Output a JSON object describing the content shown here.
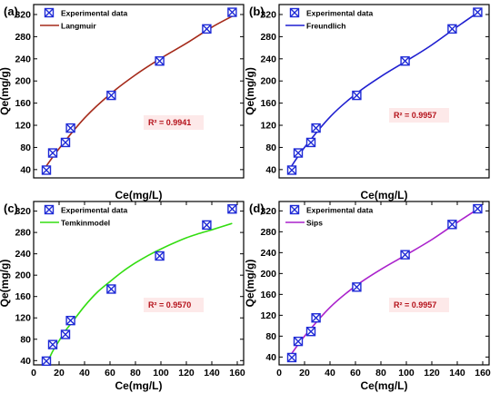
{
  "colors": {
    "marker": "#1f2bd6",
    "r2_text": "#b5121b",
    "r2_box": "#fde9e9",
    "langmuir": "#a52a1a",
    "freundlich": "#1f1fd0",
    "temkin": "#33dd11",
    "sips": "#aa22cc"
  },
  "chart_data": [
    {
      "panel_label": "(a)",
      "type": "scatter",
      "xlabel": "Ce(mg/L)",
      "ylabel": "Qe(mg/g)",
      "xlim": [
        0,
        165
      ],
      "ylim": [
        25,
        338
      ],
      "xticks": [],
      "xtick_labels": [],
      "yticks": [
        40,
        80,
        120,
        160,
        200,
        240,
        280,
        320
      ],
      "ytick_labels": [
        "40",
        "80",
        "120",
        "160",
        "200",
        "240",
        "280",
        "320"
      ],
      "legend": [
        "Experimental data",
        "Langmuir"
      ],
      "legend_position": "top-left",
      "r2_text": "R² = 0.9941",
      "series": [
        {
          "name": "Experimental data",
          "x": [
            10,
            15,
            25,
            29,
            61,
            99,
            136,
            156
          ],
          "y": [
            39,
            70,
            89,
            115,
            174,
            236,
            294,
            324
          ]
        },
        {
          "name": "Langmuir",
          "x": [
            8,
            20,
            40,
            60,
            80,
            100,
            120,
            140,
            157
          ],
          "y": [
            40,
            78,
            133,
            176,
            211,
            241,
            268,
            297,
            318
          ]
        }
      ]
    },
    {
      "panel_label": "(b)",
      "type": "scatter",
      "xlabel": "Ce(mg/L)",
      "ylabel": "Qe(mg/g)",
      "xlim": [
        0,
        165
      ],
      "ylim": [
        25,
        338
      ],
      "xticks": [],
      "xtick_labels": [],
      "yticks": [
        40,
        80,
        120,
        160,
        200,
        240,
        280,
        320
      ],
      "ytick_labels": [
        "40",
        "80",
        "120",
        "160",
        "200",
        "240",
        "280",
        "320"
      ],
      "legend": [
        "Experimental data",
        "Freundlich"
      ],
      "legend_position": "top-left",
      "r2_text": "R² = 0.9957",
      "series": [
        {
          "name": "Experimental data",
          "x": [
            10,
            15,
            25,
            29,
            61,
            99,
            136,
            156
          ],
          "y": [
            39,
            70,
            89,
            115,
            174,
            236,
            294,
            324
          ]
        },
        {
          "name": "Freundlich",
          "x": [
            8,
            20,
            40,
            60,
            80,
            100,
            120,
            140,
            157
          ],
          "y": [
            40,
            80,
            135,
            176,
            208,
            236,
            265,
            298,
            325
          ]
        }
      ]
    },
    {
      "panel_label": "(c)",
      "type": "scatter",
      "xlabel": "Ce(mg/L)",
      "ylabel": "Qe(mg/g)",
      "xlim": [
        0,
        165
      ],
      "ylim": [
        32,
        338
      ],
      "xticks": [
        0,
        20,
        40,
        60,
        80,
        100,
        120,
        140,
        160
      ],
      "xtick_labels": [
        "0",
        "20",
        "40",
        "60",
        "80",
        "100",
        "120",
        "140",
        "160"
      ],
      "yticks": [
        40,
        80,
        120,
        160,
        200,
        240,
        280,
        320
      ],
      "ytick_labels": [
        "40",
        "80",
        "120",
        "160",
        "200",
        "240",
        "280",
        "320"
      ],
      "legend": [
        "Experimental data",
        "Temkinmodel"
      ],
      "legend_position": "top-left",
      "r2_text": "R² = 0.9570",
      "series": [
        {
          "name": "Experimental data",
          "x": [
            10,
            15,
            25,
            29,
            61,
            99,
            136,
            156
          ],
          "y": [
            39,
            70,
            89,
            115,
            174,
            236,
            294,
            324
          ]
        },
        {
          "name": "Temkinmodel",
          "x": [
            10,
            13,
            16,
            20,
            25,
            30,
            40,
            50,
            60,
            70,
            80,
            90,
            100,
            110,
            120,
            130,
            140,
            156
          ],
          "y": [
            32,
            48,
            62,
            77,
            96,
            111,
            142,
            168,
            188,
            207,
            223,
            237,
            249,
            260,
            270,
            278,
            285,
            297
          ]
        }
      ]
    },
    {
      "panel_label": "(d)",
      "type": "scatter",
      "xlabel": "Ce(mg/L)",
      "ylabel": "Qe(mg/g)",
      "xlim": [
        0,
        165
      ],
      "ylim": [
        25,
        338
      ],
      "xticks": [
        0,
        20,
        40,
        60,
        80,
        100,
        120,
        140,
        160
      ],
      "xtick_labels": [
        "0",
        "20",
        "40",
        "60",
        "80",
        "100",
        "120",
        "140",
        "160"
      ],
      "yticks": [
        40,
        80,
        120,
        160,
        200,
        240,
        280,
        320
      ],
      "ytick_labels": [
        "40",
        "80",
        "120",
        "160",
        "200",
        "240",
        "280",
        "320"
      ],
      "legend": [
        "Experimental data",
        "Sips"
      ],
      "legend_position": "top-left",
      "r2_text": "R² = 0.9957",
      "series": [
        {
          "name": "Experimental data",
          "x": [
            10,
            15,
            25,
            29,
            61,
            99,
            136,
            156
          ],
          "y": [
            39,
            70,
            89,
            115,
            174,
            236,
            294,
            324
          ]
        },
        {
          "name": "Sips",
          "x": [
            8,
            20,
            40,
            60,
            80,
            100,
            120,
            140,
            157
          ],
          "y": [
            40,
            80,
            135,
            176,
            208,
            236,
            265,
            298,
            325
          ]
        }
      ]
    }
  ]
}
